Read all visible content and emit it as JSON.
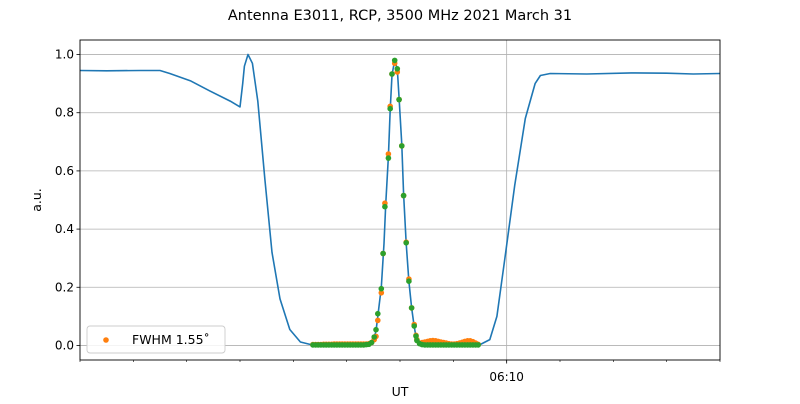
{
  "chart_data": {
    "type": "line",
    "title": "Antenna E3011, RCP, 3500 MHz 2021 March 31",
    "xlabel": "UT",
    "ylabel": "a.u.",
    "xlim": [
      "06:02:00",
      "06:14:00"
    ],
    "ylim": [
      -0.05,
      1.05
    ],
    "x_major_ticks": [
      {
        "time": "06:10:00",
        "label": "06:10"
      }
    ],
    "x_minor_tick_interval": "1 min",
    "y_ticks": [
      0.0,
      0.2,
      0.4,
      0.6,
      0.8,
      1.0
    ],
    "y_tick_labels": [
      "0.0",
      "0.2",
      "0.4",
      "0.6",
      "0.8",
      "1.0"
    ],
    "grid": true,
    "legend": {
      "placement": "lower-left",
      "entries": [
        {
          "label": "FWHM 1.55$^\\circ$",
          "text": "FWHM 1.55˚",
          "series": "fwhm"
        }
      ]
    },
    "colors": {
      "line": "#1f77b4",
      "fwhm": "#ff7f0e",
      "fit": "#2ca02c",
      "grid": "#b0b0b0"
    },
    "series": [
      {
        "id": "line",
        "kind": "line",
        "points": [
          [
            "06:02:00",
            0.945
          ],
          [
            "06:02:30",
            0.944
          ],
          [
            "06:03:08",
            0.945
          ],
          [
            "06:03:30",
            0.945
          ],
          [
            "06:03:41",
            0.935
          ],
          [
            "06:04:04",
            0.91
          ],
          [
            "06:04:26",
            0.875
          ],
          [
            "06:04:49",
            0.84
          ],
          [
            "06:05:00",
            0.82
          ],
          [
            "06:05:03",
            0.9
          ],
          [
            "06:05:05",
            0.96
          ],
          [
            "06:05:09",
            1.0
          ],
          [
            "06:05:14",
            0.97
          ],
          [
            "06:05:20",
            0.84
          ],
          [
            "06:05:28",
            0.57
          ],
          [
            "06:05:36",
            0.32
          ],
          [
            "06:05:45",
            0.16
          ],
          [
            "06:05:56",
            0.055
          ],
          [
            "06:06:08",
            0.012
          ],
          [
            "06:06:21",
            0.002
          ],
          [
            "06:07:26",
            0.004
          ],
          [
            "06:07:30",
            0.015
          ],
          [
            "06:07:33",
            0.05
          ],
          [
            "06:07:35",
            0.1
          ],
          [
            "06:07:39",
            0.2
          ],
          [
            "06:07:42",
            0.35
          ],
          [
            "06:07:44",
            0.49
          ],
          [
            "06:07:47",
            0.65
          ],
          [
            "06:07:49",
            0.81
          ],
          [
            "06:07:51",
            0.93
          ],
          [
            "06:07:54",
            0.98
          ],
          [
            "06:07:57",
            0.95
          ],
          [
            "06:07:59",
            0.85
          ],
          [
            "06:08:02",
            0.69
          ],
          [
            "06:08:04",
            0.52
          ],
          [
            "06:08:07",
            0.35
          ],
          [
            "06:08:10",
            0.22
          ],
          [
            "06:08:13",
            0.13
          ],
          [
            "06:08:16",
            0.065
          ],
          [
            "06:08:18",
            0.03
          ],
          [
            "06:08:21",
            0.008
          ],
          [
            "06:08:25",
            0.003
          ],
          [
            "06:09:30",
            0.003
          ],
          [
            "06:09:41",
            0.02
          ],
          [
            "06:09:49",
            0.1
          ],
          [
            "06:09:58",
            0.3
          ],
          [
            "06:10:09",
            0.55
          ],
          [
            "06:10:21",
            0.78
          ],
          [
            "06:10:32",
            0.9
          ],
          [
            "06:10:38",
            0.928
          ],
          [
            "06:10:49",
            0.935
          ],
          [
            "06:11:30",
            0.933
          ],
          [
            "06:12:20",
            0.937
          ],
          [
            "06:13:00",
            0.936
          ],
          [
            "06:13:30",
            0.933
          ],
          [
            "06:14:00",
            0.935
          ]
        ]
      },
      {
        "id": "fwhm",
        "kind": "scatter",
        "points": [
          [
            "06:06:22",
            0.003
          ],
          [
            "06:06:25",
            0.003
          ],
          [
            "06:06:28",
            0.003
          ],
          [
            "06:06:31",
            0.003
          ],
          [
            "06:06:34",
            0.004
          ],
          [
            "06:06:37",
            0.004
          ],
          [
            "06:06:40",
            0.004
          ],
          [
            "06:06:43",
            0.004
          ],
          [
            "06:06:46",
            0.005
          ],
          [
            "06:06:49",
            0.005
          ],
          [
            "06:06:52",
            0.005
          ],
          [
            "06:06:55",
            0.005
          ],
          [
            "06:06:58",
            0.005
          ],
          [
            "06:07:01",
            0.005
          ],
          [
            "06:07:04",
            0.005
          ],
          [
            "06:07:07",
            0.005
          ],
          [
            "06:07:10",
            0.005
          ],
          [
            "06:07:13",
            0.005
          ],
          [
            "06:07:16",
            0.005
          ],
          [
            "06:07:19",
            0.005
          ],
          [
            "06:07:22",
            0.005
          ],
          [
            "06:07:25",
            0.006
          ],
          [
            "06:07:28",
            0.01
          ],
          [
            "06:07:31",
            0.02
          ],
          [
            "06:07:33",
            0.031
          ],
          [
            "06:07:35",
            0.086
          ],
          [
            "06:07:39",
            0.181
          ],
          [
            "06:07:41",
            0.316
          ],
          [
            "06:07:43",
            0.489
          ],
          [
            "06:07:47",
            0.658
          ],
          [
            "06:07:49",
            0.822
          ],
          [
            "06:07:51",
            0.933
          ],
          [
            "06:07:54",
            0.97
          ],
          [
            "06:07:57",
            0.94
          ],
          [
            "06:07:59",
            0.845
          ],
          [
            "06:08:02",
            0.686
          ],
          [
            "06:08:04",
            0.515
          ],
          [
            "06:08:07",
            0.355
          ],
          [
            "06:08:10",
            0.228
          ],
          [
            "06:08:13",
            0.129
          ],
          [
            "06:08:16",
            0.072
          ],
          [
            "06:08:18",
            0.035
          ],
          [
            "06:08:19",
            0.02
          ],
          [
            "06:08:22",
            0.008
          ],
          [
            "06:08:25",
            0.01
          ],
          [
            "06:08:28",
            0.012
          ],
          [
            "06:08:31",
            0.014
          ],
          [
            "06:08:34",
            0.016
          ],
          [
            "06:08:37",
            0.017
          ],
          [
            "06:08:40",
            0.016
          ],
          [
            "06:08:43",
            0.014
          ],
          [
            "06:08:46",
            0.012
          ],
          [
            "06:08:49",
            0.01
          ],
          [
            "06:08:52",
            0.008
          ],
          [
            "06:08:55",
            0.006
          ],
          [
            "06:08:58",
            0.005
          ],
          [
            "06:09:01",
            0.005
          ],
          [
            "06:09:04",
            0.006
          ],
          [
            "06:09:07",
            0.008
          ],
          [
            "06:09:10",
            0.011
          ],
          [
            "06:09:13",
            0.014
          ],
          [
            "06:09:16",
            0.016
          ],
          [
            "06:09:19",
            0.016
          ],
          [
            "06:09:22",
            0.013
          ],
          [
            "06:09:25",
            0.008
          ],
          [
            "06:09:28",
            0.004
          ]
        ]
      },
      {
        "id": "fit",
        "kind": "scatter",
        "points": [
          [
            "06:06:22",
            0.002
          ],
          [
            "06:06:25",
            0.002
          ],
          [
            "06:06:28",
            0.002
          ],
          [
            "06:06:31",
            0.002
          ],
          [
            "06:06:34",
            0.002
          ],
          [
            "06:06:37",
            0.002
          ],
          [
            "06:06:40",
            0.002
          ],
          [
            "06:06:43",
            0.002
          ],
          [
            "06:06:46",
            0.002
          ],
          [
            "06:06:49",
            0.002
          ],
          [
            "06:06:52",
            0.002
          ],
          [
            "06:06:55",
            0.002
          ],
          [
            "06:06:58",
            0.002
          ],
          [
            "06:07:01",
            0.002
          ],
          [
            "06:07:04",
            0.002
          ],
          [
            "06:07:07",
            0.002
          ],
          [
            "06:07:10",
            0.002
          ],
          [
            "06:07:13",
            0.002
          ],
          [
            "06:07:16",
            0.002
          ],
          [
            "06:07:19",
            0.002
          ],
          [
            "06:07:22",
            0.003
          ],
          [
            "06:07:25",
            0.004
          ],
          [
            "06:07:28",
            0.01
          ],
          [
            "06:07:31",
            0.029
          ],
          [
            "06:07:33",
            0.054
          ],
          [
            "06:07:35",
            0.109
          ],
          [
            "06:07:39",
            0.195
          ],
          [
            "06:07:41",
            0.316
          ],
          [
            "06:07:43",
            0.477
          ],
          [
            "06:07:47",
            0.644
          ],
          [
            "06:07:49",
            0.814
          ],
          [
            "06:07:51",
            0.933
          ],
          [
            "06:07:54",
            0.98
          ],
          [
            "06:07:57",
            0.951
          ],
          [
            "06:07:59",
            0.845
          ],
          [
            "06:08:02",
            0.686
          ],
          [
            "06:08:04",
            0.515
          ],
          [
            "06:08:07",
            0.353
          ],
          [
            "06:08:10",
            0.221
          ],
          [
            "06:08:13",
            0.129
          ],
          [
            "06:08:16",
            0.067
          ],
          [
            "06:08:18",
            0.032
          ],
          [
            "06:08:19",
            0.017
          ],
          [
            "06:08:22",
            0.006
          ],
          [
            "06:08:25",
            0.003
          ],
          [
            "06:08:28",
            0.002
          ],
          [
            "06:08:31",
            0.002
          ],
          [
            "06:08:34",
            0.002
          ],
          [
            "06:08:37",
            0.002
          ],
          [
            "06:08:40",
            0.002
          ],
          [
            "06:08:43",
            0.002
          ],
          [
            "06:08:46",
            0.002
          ],
          [
            "06:08:49",
            0.002
          ],
          [
            "06:08:52",
            0.002
          ],
          [
            "06:08:55",
            0.002
          ],
          [
            "06:08:58",
            0.002
          ],
          [
            "06:09:01",
            0.002
          ],
          [
            "06:09:04",
            0.002
          ],
          [
            "06:09:07",
            0.002
          ],
          [
            "06:09:10",
            0.002
          ],
          [
            "06:09:13",
            0.002
          ],
          [
            "06:09:16",
            0.002
          ],
          [
            "06:09:19",
            0.002
          ],
          [
            "06:09:22",
            0.002
          ],
          [
            "06:09:25",
            0.002
          ],
          [
            "06:09:28",
            0.002
          ]
        ]
      }
    ]
  }
}
